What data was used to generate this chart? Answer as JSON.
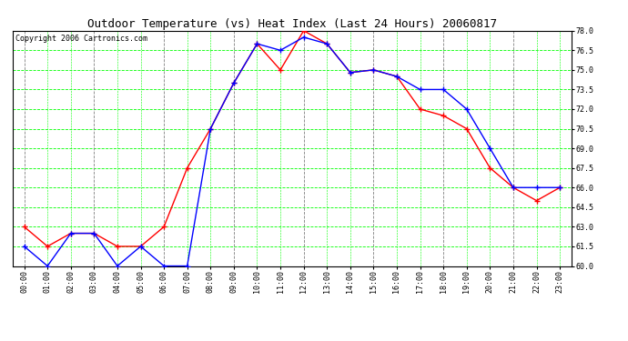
{
  "title": "Outdoor Temperature (vs) Heat Index (Last 24 Hours) 20060817",
  "copyright": "Copyright 2006 Cartronics.com",
  "hours": [
    "00:00",
    "01:00",
    "02:00",
    "03:00",
    "04:00",
    "05:00",
    "06:00",
    "07:00",
    "08:00",
    "09:00",
    "10:00",
    "11:00",
    "12:00",
    "13:00",
    "14:00",
    "15:00",
    "16:00",
    "17:00",
    "18:00",
    "19:00",
    "20:00",
    "21:00",
    "22:00",
    "23:00"
  ],
  "temp": [
    63.0,
    61.5,
    62.5,
    62.5,
    61.5,
    61.5,
    63.0,
    67.5,
    70.5,
    74.0,
    77.0,
    75.0,
    78.0,
    77.0,
    74.8,
    75.0,
    74.5,
    72.0,
    71.5,
    70.5,
    67.5,
    66.0,
    65.0,
    66.0
  ],
  "heat_index": [
    61.5,
    60.0,
    62.5,
    62.5,
    60.0,
    61.5,
    60.0,
    60.0,
    70.5,
    74.0,
    77.0,
    76.5,
    77.5,
    77.0,
    74.8,
    75.0,
    74.5,
    73.5,
    73.5,
    72.0,
    69.0,
    66.0,
    66.0,
    66.0
  ],
  "ylim": [
    60.0,
    78.0
  ],
  "yticks": [
    60.0,
    61.5,
    63.0,
    64.5,
    66.0,
    67.5,
    69.0,
    70.5,
    72.0,
    73.5,
    75.0,
    76.5,
    78.0
  ],
  "temp_color": "#ff0000",
  "heat_index_color": "#0000ff",
  "bg_color": "#ffffff",
  "grid_green": "#00ff00",
  "grid_gray": "#808080",
  "title_fontsize": 9,
  "copyright_fontsize": 6,
  "tick_fontsize": 6,
  "ytick_fontsize": 6
}
